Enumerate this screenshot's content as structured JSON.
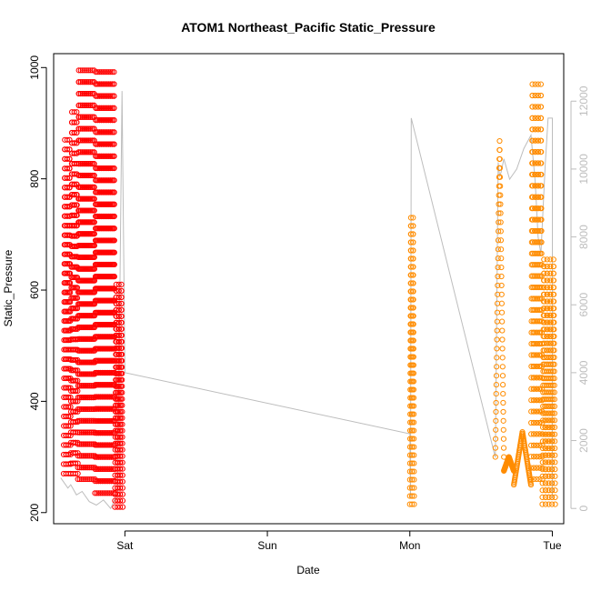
{
  "chart_data": {
    "type": "scatter",
    "title": "ATOM1 Northeast_Pacific Static_Pressure",
    "xlabel": "Date",
    "ylabel": "Static_Pressure",
    "x_ticks": [
      "Sat",
      "Sun",
      "Mon",
      "Tue"
    ],
    "x_tick_days": [
      1,
      2,
      3,
      4
    ],
    "xlim_days": [
      0.5,
      4.08
    ],
    "ylim": [
      180,
      1025
    ],
    "y_ticks": [
      200,
      400,
      600,
      800,
      1000
    ],
    "y2_ticks": [
      0,
      2000,
      4000,
      6000,
      8000,
      10000,
      12000
    ],
    "y2lim": [
      -450,
      13400
    ],
    "y2_color": "#bdbdbd",
    "grid": false,
    "series": [
      {
        "color": "#ff0000",
        "marker": "circle-open",
        "segments": [
          {
            "x_start": 0.57,
            "x_end": 0.62,
            "y_low": 270,
            "y_high": 870,
            "cycles": 3
          },
          {
            "x_start": 0.62,
            "x_end": 0.67,
            "y_low": 270,
            "y_high": 920,
            "cycles": 3
          },
          {
            "x_start": 0.67,
            "x_end": 0.79,
            "y_low": 260,
            "y_high": 995,
            "cycles": 9
          },
          {
            "x_start": 0.79,
            "x_end": 0.93,
            "y_low": 235,
            "y_high": 992,
            "cycles": 11
          },
          {
            "x_start": 0.93,
            "x_end": 0.985,
            "y_low": 210,
            "y_high": 610,
            "cycles": 3
          }
        ]
      },
      {
        "color": "#ff8c00",
        "marker": "circle-open",
        "segments": [
          {
            "x_start": 3.0,
            "x_end": 3.03,
            "y_low": 215,
            "y_high": 730,
            "cycles": 2
          },
          {
            "x_start": 3.6,
            "x_end": 3.66,
            "y_low": 300,
            "y_high": 868,
            "cycles": 1
          },
          {
            "x_start": 3.66,
            "x_end": 3.73,
            "y_low": 275,
            "y_high": 300,
            "cycles": 1
          },
          {
            "x_start": 3.73,
            "x_end": 3.85,
            "y_low": 250,
            "y_high": 345,
            "cycles": 1
          },
          {
            "x_start": 3.85,
            "x_end": 3.93,
            "y_low": 260,
            "y_high": 970,
            "cycles": 4
          },
          {
            "x_start": 3.93,
            "x_end": 4.02,
            "y_low": 215,
            "y_high": 655,
            "cycles": 4
          }
        ]
      },
      {
        "color": "#bdbdbd",
        "axis": "right",
        "type": "line",
        "x": [
          0.55,
          0.6,
          0.62,
          0.66,
          0.7,
          0.75,
          0.8,
          0.85,
          0.9,
          0.95,
          0.98,
          1.0,
          3.0,
          3.005,
          3.01,
          3.6,
          3.62,
          3.63,
          3.64,
          3.66,
          3.7,
          3.75,
          3.8,
          3.85,
          3.88,
          3.9,
          3.92,
          3.95,
          3.97,
          4.0,
          4.0
        ],
        "y": [
          900,
          600,
          700,
          400,
          500,
          200,
          100,
          250,
          0,
          450,
          12300,
          4000,
          2200,
          300,
          11500,
          1500,
          10200,
          9800,
          9900,
          10300,
          9700,
          10000,
          10600,
          11000,
          9600,
          8000,
          7500,
          10100,
          11500,
          11500,
          300
        ]
      }
    ]
  }
}
